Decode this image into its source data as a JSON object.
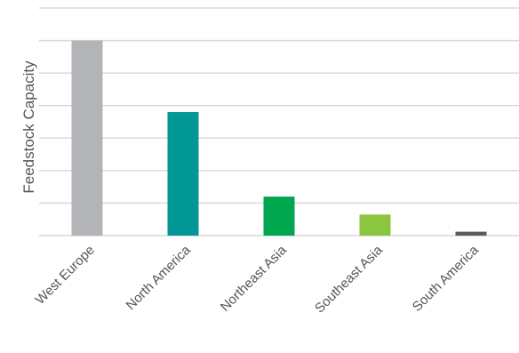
{
  "chart_data": {
    "type": "bar",
    "ylabel": "Feedstock Capacity",
    "xlabel": "",
    "categories": [
      "West Europe",
      "North America",
      "Northeast Asia",
      "Southeast Asia",
      "South America"
    ],
    "values": [
      6.0,
      3.8,
      1.2,
      0.65,
      0.12
    ],
    "colors": [
      "#b3b4b8",
      "#009794",
      "#00a74f",
      "#8cc63f",
      "#5b5b5b"
    ],
    "ylim": [
      0,
      7
    ],
    "yticks": [
      0,
      1,
      2,
      3,
      4,
      5,
      6,
      7
    ],
    "show_tick_labels": false,
    "grid": true,
    "gridline_color": "#d9d9d9"
  }
}
